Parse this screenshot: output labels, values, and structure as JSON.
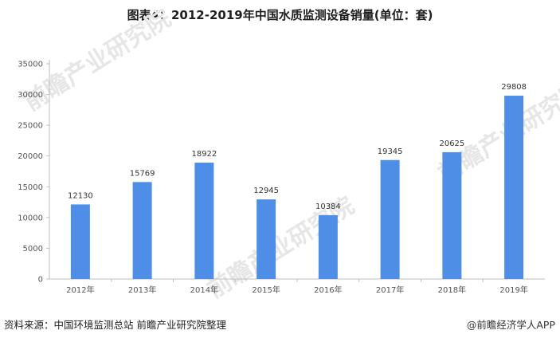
{
  "title": "图表4：2012-2019年中国水质监测设备销量(单位：套)",
  "source": "资料来源：中国环境监测总站 前瞻产业研究院整理",
  "credit": "@前瞻经济学人APP",
  "watermark_text": "前瞻产业研究院",
  "colors": {
    "bar": "#4F8EE6",
    "axis": "#bfbfbf",
    "text": "#555555"
  },
  "chart_data": {
    "type": "bar",
    "title": "图表4：2012-2019年中国水质监测设备销量(单位：套)",
    "xlabel": "",
    "ylabel": "",
    "categories": [
      "2012年",
      "2013年",
      "2014年",
      "2015年",
      "2016年",
      "2017年",
      "2018年",
      "2019年"
    ],
    "values": [
      12130,
      15769,
      18922,
      12945,
      10384,
      19345,
      20625,
      29808
    ],
    "ylim": [
      0,
      35000
    ],
    "yticks": [
      0,
      5000,
      10000,
      15000,
      20000,
      25000,
      30000,
      35000
    ],
    "grid": false,
    "legend": "none",
    "data_labels": true
  }
}
